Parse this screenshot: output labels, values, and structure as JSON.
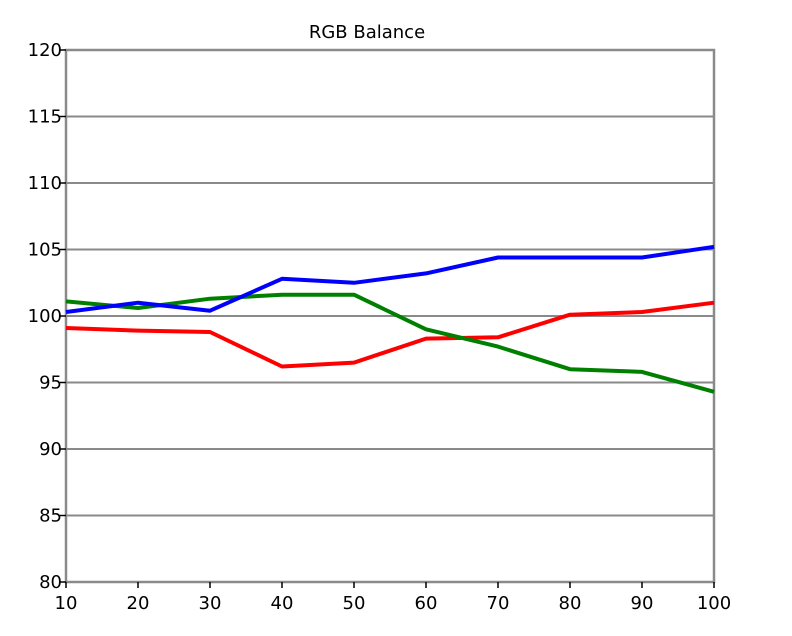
{
  "chart_data": {
    "type": "line",
    "title": "RGB Balance",
    "xlabel": "",
    "ylabel": "",
    "x": [
      10,
      20,
      30,
      40,
      50,
      60,
      70,
      80,
      90,
      100
    ],
    "xticks": [
      "10",
      "20",
      "30",
      "40",
      "50",
      "60",
      "70",
      "80",
      "90",
      "100"
    ],
    "yticks": [
      "80",
      "85",
      "90",
      "95",
      "100",
      "105",
      "110",
      "115",
      "120"
    ],
    "xlim": [
      10,
      100
    ],
    "ylim": [
      80,
      120
    ],
    "grid": "horizontal",
    "legend": "none",
    "series": [
      {
        "color": "#ff0000",
        "values": [
          99.1,
          98.9,
          98.8,
          96.2,
          96.5,
          98.3,
          98.4,
          100.1,
          100.3,
          101.0
        ]
      },
      {
        "color": "#008000",
        "values": [
          101.1,
          100.6,
          101.3,
          101.6,
          101.6,
          99.0,
          97.7,
          96.0,
          95.8,
          94.3
        ]
      },
      {
        "color": "#0000ff",
        "values": [
          100.3,
          101.0,
          100.4,
          102.8,
          102.5,
          103.2,
          104.4,
          104.4,
          104.4,
          105.2
        ]
      }
    ]
  }
}
